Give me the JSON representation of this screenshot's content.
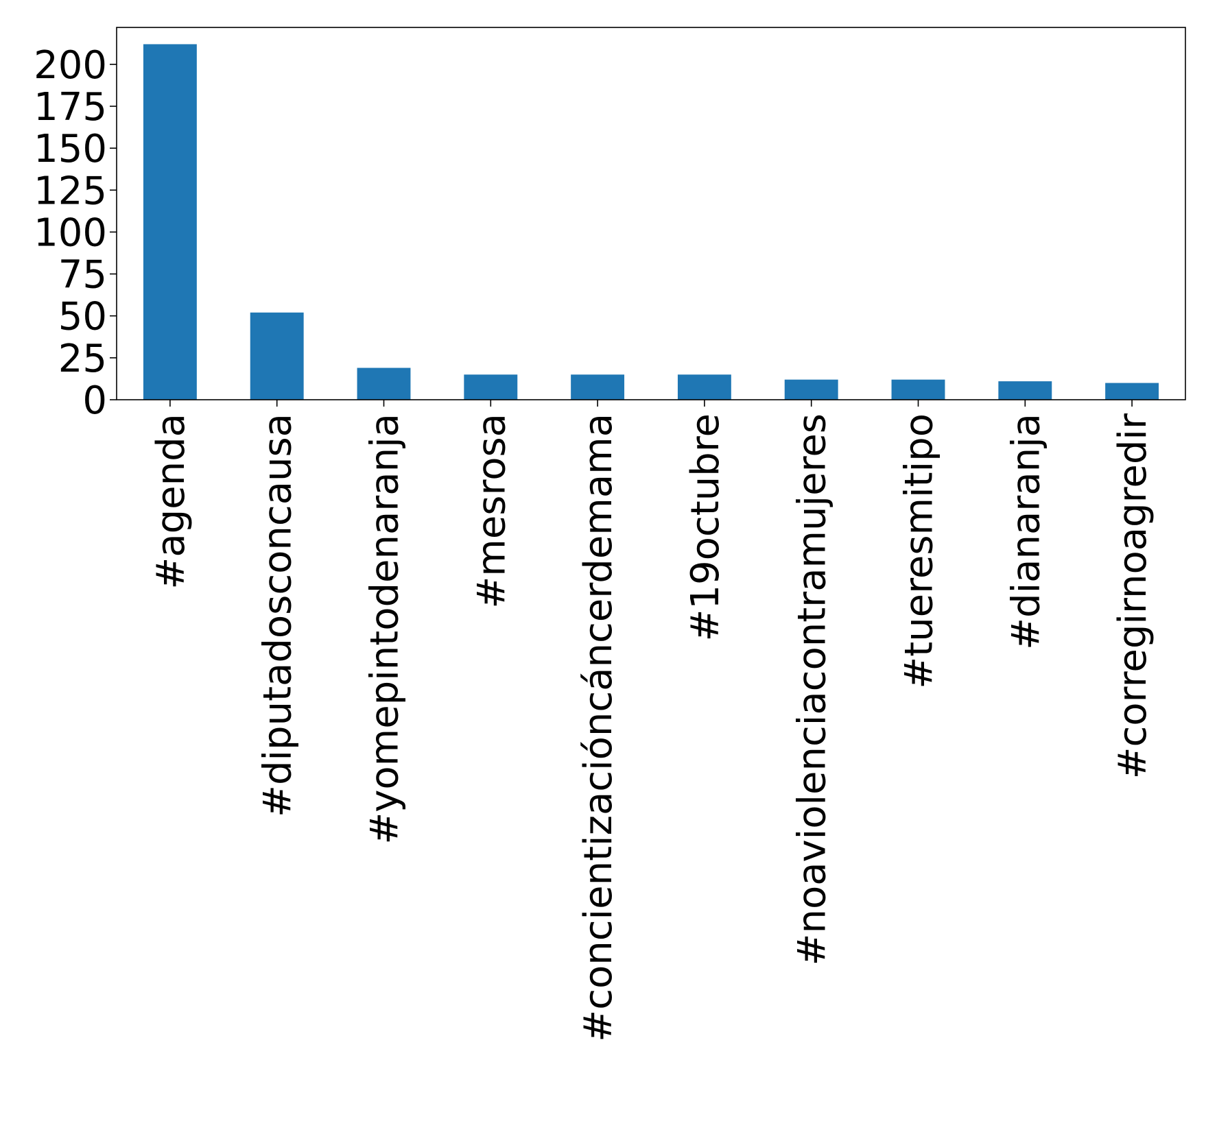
{
  "chart_data": {
    "type": "bar",
    "title": "",
    "xlabel": "",
    "ylabel": "",
    "categories": [
      "#agenda",
      "#diputadosconcausa",
      "#yomepintodenaranja",
      "#mesrosa",
      "#concientizacióncáncerdemama",
      "#19octubre",
      "#noaviolenciacontramujeres",
      "#tueresmitipo",
      "#dianaranja",
      "#corregirnoagredir"
    ],
    "values": [
      212,
      52,
      19,
      15,
      15,
      15,
      12,
      12,
      11,
      10
    ],
    "ylim": [
      0,
      222
    ],
    "yticks": [
      0,
      25,
      50,
      75,
      100,
      125,
      150,
      175,
      200
    ],
    "ytick_labels": [
      "0",
      "25",
      "50",
      "75",
      "100",
      "125",
      "150",
      "175",
      "200"
    ],
    "bar_color": "#1f77b4",
    "grid": false,
    "legend": "none"
  }
}
